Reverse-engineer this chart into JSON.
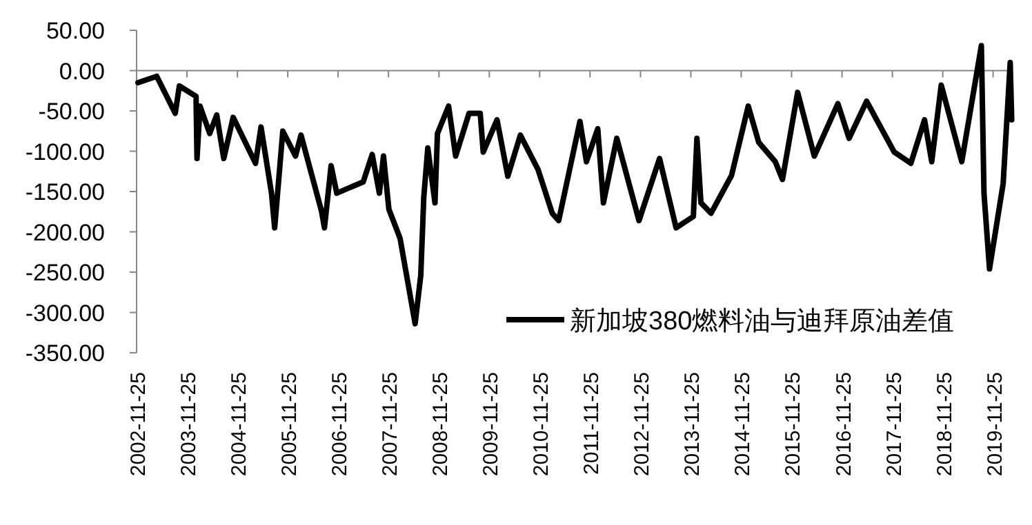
{
  "chart_data": {
    "type": "line",
    "legend": "bottom right",
    "grid": false,
    "marker": "none",
    "line_style": "solid",
    "x": [
      "2002-12-05",
      "2003-04-20",
      "2003-09-01",
      "2003-10-01",
      "2004-01-30",
      "2004-02-06",
      "2004-02-28",
      "2004-05-08",
      "2004-06-28",
      "2004-08-18",
      "2004-10-25",
      "2005-04-05",
      "2005-05-15",
      "2005-07-30",
      "2005-08-22",
      "2005-10-20",
      "2006-01-20",
      "2006-03-01",
      "2006-07-27",
      "2006-08-18",
      "2006-10-05",
      "2006-11-15",
      "2007-05-26",
      "2007-07-30",
      "2007-09-20",
      "2007-10-20",
      "2007-11-28",
      "2008-02-17",
      "2008-04-27",
      "2008-06-05",
      "2008-07-16",
      "2008-08-07",
      "2008-09-05",
      "2008-10-27",
      "2008-11-14",
      "2009-02-03",
      "2009-03-26",
      "2009-07-01",
      "2009-09-20",
      "2009-10-12",
      "2010-01-20",
      "2010-04-08",
      "2010-07-08",
      "2010-11-14",
      "2011-02-24",
      "2011-04-12",
      "2011-09-13",
      "2011-10-30",
      "2012-01-20",
      "2012-03-01",
      "2012-06-06",
      "2012-11-14",
      "2013-04-12",
      "2013-08-10",
      "2013-12-13",
      "2014-01-08",
      "2014-02-06",
      "2014-04-20",
      "2014-09-16",
      "2015-01-15",
      "2015-04-01",
      "2015-07-30",
      "2015-09-20",
      "2016-01-08",
      "2016-05-08",
      "2016-10-26",
      "2017-01-15",
      "2017-05-22",
      "2017-12-08",
      "2018-04-08",
      "2018-07-16",
      "2018-09-06",
      "2018-11-14",
      "2019-04-12",
      "2019-09-01",
      "2019-09-20",
      "2019-10-30",
      "2020-02-06",
      "2020-03-28",
      "2020-04-08"
    ],
    "series": [
      {
        "name": "新加坡380燃料油与迪拜原油差值",
        "color": "#000000",
        "values": [
          -15,
          -7,
          -53,
          -19,
          -32,
          -109,
          -44,
          -78,
          -55,
          -109,
          -58,
          -115,
          -70,
          -152,
          -195,
          -75,
          -106,
          -80,
          -174,
          -195,
          -118,
          -152,
          -138,
          -104,
          -152,
          -106,
          -172,
          -208,
          -276,
          -314,
          -254,
          -157,
          -96,
          -164,
          -78,
          -44,
          -106,
          -53,
          -53,
          -101,
          -61,
          -131,
          -80,
          -123,
          -177,
          -186,
          -63,
          -113,
          -72,
          -164,
          -84,
          -186,
          -109,
          -195,
          -181,
          -84,
          -164,
          -177,
          -130,
          -44,
          -89,
          -113,
          -135,
          -27,
          -106,
          -41,
          -84,
          -38,
          -101,
          -115,
          -61,
          -113,
          -18,
          -113,
          31,
          -152,
          -246,
          -140,
          10,
          -61
        ]
      }
    ],
    "xlim": [
      "2002-11-25",
      "2020-04-15"
    ],
    "xticks": [
      "2002-11-25",
      "2003-11-25",
      "2004-11-25",
      "2005-11-25",
      "2006-11-25",
      "2007-11-25",
      "2008-11-25",
      "2009-11-25",
      "2010-11-25",
      "2011-11-25",
      "2012-11-25",
      "2013-11-25",
      "2014-11-25",
      "2015-11-25",
      "2016-11-25",
      "2017-11-25",
      "2018-11-25",
      "2019-11-25"
    ],
    "ylim": [
      -350,
      50
    ],
    "ref_lines": [
      {
        "axis": "y",
        "value": 0,
        "color": "#868686"
      }
    ],
    "yticks": [
      {
        "value": 50,
        "label": "50.00"
      },
      {
        "value": 0,
        "label": "0.00"
      },
      {
        "value": -50,
        "label": "-50.00"
      },
      {
        "value": -100,
        "label": "-100.00"
      },
      {
        "value": -150,
        "label": "-150.00"
      },
      {
        "value": -200,
        "label": "-200.00"
      },
      {
        "value": -250,
        "label": "-250.00"
      },
      {
        "value": -300,
        "label": "-300.00"
      },
      {
        "value": -350,
        "label": "-350.00"
      }
    ]
  }
}
